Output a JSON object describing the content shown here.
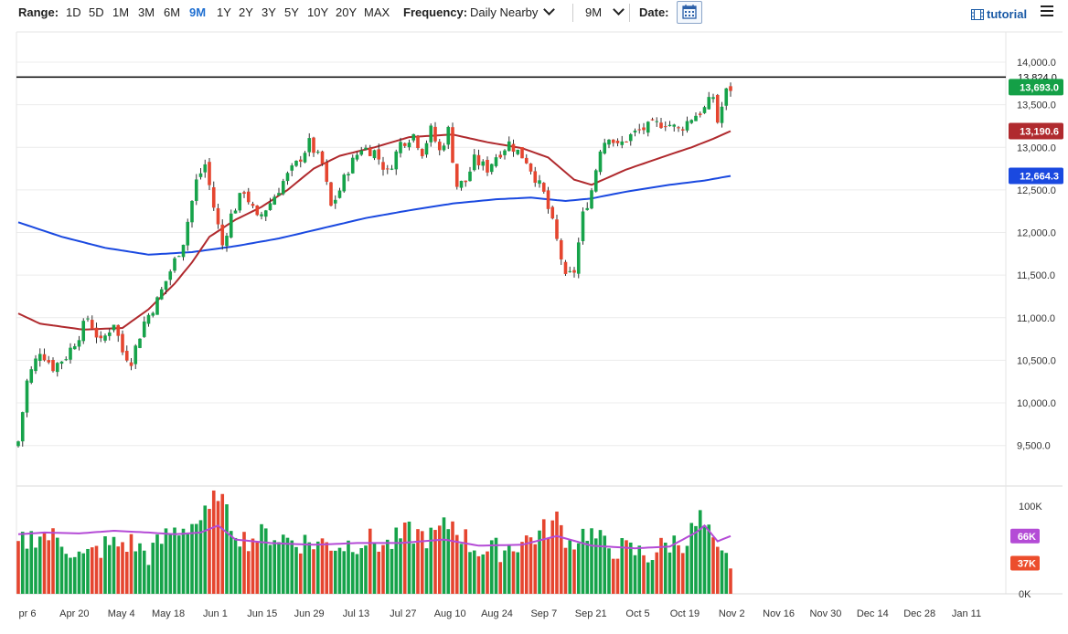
{
  "toolbar": {
    "range_label": "Range:",
    "ranges": [
      "1D",
      "5D",
      "1M",
      "3M",
      "6M",
      "9M",
      "1Y",
      "2Y",
      "3Y",
      "5Y",
      "10Y",
      "20Y",
      "MAX"
    ],
    "active_range": "9M",
    "frequency_label": "Frequency:",
    "frequency_value": "Daily Nearby",
    "period_value": "9M",
    "date_label": "Date:",
    "tutorial_label": "tutorial",
    "accent_color": "#1f6fd1"
  },
  "chart_data": [
    {
      "type": "candlestick",
      "y_ticks": [
        14000,
        13500,
        13000,
        12500,
        12000,
        11500,
        11000,
        10500,
        10000,
        9500
      ],
      "y_tick_labels": [
        "14,000.0",
        "13,500.0",
        "13,000.0",
        "12,500.0",
        "12,000.0",
        "11,500.0",
        "11,000.0",
        "10,500.0",
        "10,000.0",
        "9,500.0"
      ],
      "ylim": [
        9100,
        14300
      ],
      "x_labels": [
        "pr 6",
        "Apr 20",
        "May 4",
        "May 18",
        "Jun 1",
        "Jun 15",
        "Jun 29",
        "Jul 13",
        "Jul 27",
        "Aug 10",
        "Aug 24",
        "Sep 7",
        "Sep 21",
        "Oct 5",
        "Oct 19",
        "Nov 2",
        "Nov 16",
        "Nov 30",
        "Dec 14",
        "Dec 28",
        "Jan 11"
      ],
      "close_anchors": [
        [
          0,
          9550
        ],
        [
          2,
          10250
        ],
        [
          5,
          10620
        ],
        [
          8,
          10420
        ],
        [
          11,
          10550
        ],
        [
          14,
          10800
        ],
        [
          16,
          11000
        ],
        [
          19,
          10700
        ],
        [
          22,
          10950
        ],
        [
          24,
          10600
        ],
        [
          26,
          10500
        ],
        [
          29,
          10950
        ],
        [
          32,
          11200
        ],
        [
          35,
          11550
        ],
        [
          38,
          11900
        ],
        [
          41,
          12600
        ],
        [
          43,
          12800
        ],
        [
          45,
          12300
        ],
        [
          47,
          11850
        ],
        [
          49,
          12200
        ],
        [
          52,
          12500
        ],
        [
          55,
          12150
        ],
        [
          58,
          12350
        ],
        [
          61,
          12600
        ],
        [
          64,
          12800
        ],
        [
          67,
          13050
        ],
        [
          70,
          12800
        ],
        [
          72,
          12300
        ],
        [
          74,
          12500
        ],
        [
          76,
          12750
        ],
        [
          79,
          13000
        ],
        [
          82,
          12950
        ],
        [
          85,
          12700
        ],
        [
          88,
          13050
        ],
        [
          91,
          13150
        ],
        [
          93,
          12950
        ],
        [
          95,
          13200
        ],
        [
          97,
          12950
        ],
        [
          99,
          13200
        ],
        [
          101,
          12550
        ],
        [
          103,
          12600
        ],
        [
          105,
          12850
        ],
        [
          108,
          12750
        ],
        [
          110,
          12900
        ],
        [
          113,
          13050
        ],
        [
          115,
          12950
        ],
        [
          117,
          12850
        ],
        [
          119,
          12650
        ],
        [
          121,
          12450
        ],
        [
          123,
          12100
        ],
        [
          125,
          11700
        ],
        [
          126,
          11450
        ],
        [
          128,
          11550
        ],
        [
          130,
          12200
        ],
        [
          132,
          12500
        ],
        [
          134,
          13000
        ],
        [
          136,
          13150
        ],
        [
          138,
          13000
        ],
        [
          140,
          13100
        ],
        [
          143,
          13200
        ],
        [
          146,
          13250
        ],
        [
          149,
          13300
        ],
        [
          152,
          13200
        ],
        [
          155,
          13350
        ],
        [
          158,
          13450
        ],
        [
          160,
          13600
        ],
        [
          161,
          13300
        ],
        [
          163,
          13650
        ],
        [
          164,
          13693
        ]
      ],
      "volume_anchors": [
        [
          0,
          55
        ],
        [
          5,
          70
        ],
        [
          10,
          60
        ],
        [
          15,
          40
        ],
        [
          20,
          55
        ],
        [
          26,
          58
        ],
        [
          30,
          45
        ],
        [
          35,
          70
        ],
        [
          40,
          80
        ],
        [
          44,
          90
        ],
        [
          46,
          120
        ],
        [
          48,
          88
        ],
        [
          52,
          62
        ],
        [
          58,
          68
        ],
        [
          64,
          60
        ],
        [
          70,
          58
        ],
        [
          75,
          56
        ],
        [
          80,
          62
        ],
        [
          85,
          55
        ],
        [
          90,
          70
        ],
        [
          95,
          64
        ],
        [
          100,
          82
        ],
        [
          104,
          56
        ],
        [
          108,
          48
        ],
        [
          112,
          52
        ],
        [
          116,
          60
        ],
        [
          120,
          68
        ],
        [
          124,
          84
        ],
        [
          127,
          58
        ],
        [
          131,
          72
        ],
        [
          135,
          55
        ],
        [
          140,
          50
        ],
        [
          145,
          44
        ],
        [
          150,
          58
        ],
        [
          154,
          62
        ],
        [
          157,
          86
        ],
        [
          159,
          66
        ],
        [
          161,
          42
        ],
        [
          164,
          37
        ]
      ],
      "volume_avg_anchors": [
        [
          0,
          68
        ],
        [
          6,
          70
        ],
        [
          14,
          69
        ],
        [
          22,
          72
        ],
        [
          30,
          70
        ],
        [
          36,
          68
        ],
        [
          42,
          70
        ],
        [
          46,
          78
        ],
        [
          50,
          62
        ],
        [
          58,
          58
        ],
        [
          68,
          56
        ],
        [
          78,
          58
        ],
        [
          88,
          58
        ],
        [
          98,
          62
        ],
        [
          106,
          55
        ],
        [
          116,
          56
        ],
        [
          124,
          66
        ],
        [
          132,
          55
        ],
        [
          142,
          52
        ],
        [
          150,
          54
        ],
        [
          156,
          70
        ],
        [
          158,
          78
        ],
        [
          161,
          60
        ],
        [
          164,
          66
        ]
      ],
      "ma50_anchors": [
        [
          0,
          11050
        ],
        [
          5,
          10930
        ],
        [
          15,
          10860
        ],
        [
          24,
          10880
        ],
        [
          30,
          11100
        ],
        [
          36,
          11400
        ],
        [
          40,
          11650
        ],
        [
          44,
          11950
        ],
        [
          50,
          12150
        ],
        [
          56,
          12300
        ],
        [
          62,
          12500
        ],
        [
          68,
          12750
        ],
        [
          74,
          12900
        ],
        [
          82,
          13000
        ],
        [
          90,
          13120
        ],
        [
          100,
          13150
        ],
        [
          108,
          13060
        ],
        [
          116,
          12990
        ],
        [
          122,
          12880
        ],
        [
          128,
          12620
        ],
        [
          132,
          12560
        ],
        [
          140,
          12740
        ],
        [
          148,
          12880
        ],
        [
          155,
          13000
        ],
        [
          160,
          13100
        ],
        [
          164,
          13190.6
        ]
      ],
      "ma200_anchors": [
        [
          0,
          12120
        ],
        [
          10,
          11950
        ],
        [
          20,
          11820
        ],
        [
          30,
          11740
        ],
        [
          40,
          11770
        ],
        [
          50,
          11840
        ],
        [
          60,
          11930
        ],
        [
          70,
          12050
        ],
        [
          80,
          12170
        ],
        [
          90,
          12260
        ],
        [
          100,
          12340
        ],
        [
          110,
          12390
        ],
        [
          118,
          12410
        ],
        [
          126,
          12370
        ],
        [
          132,
          12400
        ],
        [
          140,
          12480
        ],
        [
          150,
          12560
        ],
        [
          158,
          12610
        ],
        [
          164,
          12664.3
        ]
      ],
      "reference_line": {
        "value": 13824.0,
        "label": "13,824.0"
      },
      "price_labels": [
        {
          "label": "13,693.0",
          "value": 13693.0,
          "color": "#14a047"
        },
        {
          "label": "13,190.6",
          "value": 13190.6,
          "color": "#b02a2e"
        },
        {
          "label": "12,664.3",
          "value": 12664.3,
          "color": "#1a49e0"
        }
      ],
      "volume_ticks": [
        "100K",
        "0K"
      ],
      "volume_labels": [
        {
          "label": "66K",
          "value": 66,
          "color": "#b44bd6"
        },
        {
          "label": "37K",
          "value": 37,
          "color": "#ec4d2c"
        }
      ],
      "series_colors": {
        "up": "#16a34a",
        "down": "#e5452f",
        "ma50": "#b02a2e",
        "ma200": "#1a49e0",
        "volume_avg": "#b44bd6"
      }
    }
  ]
}
